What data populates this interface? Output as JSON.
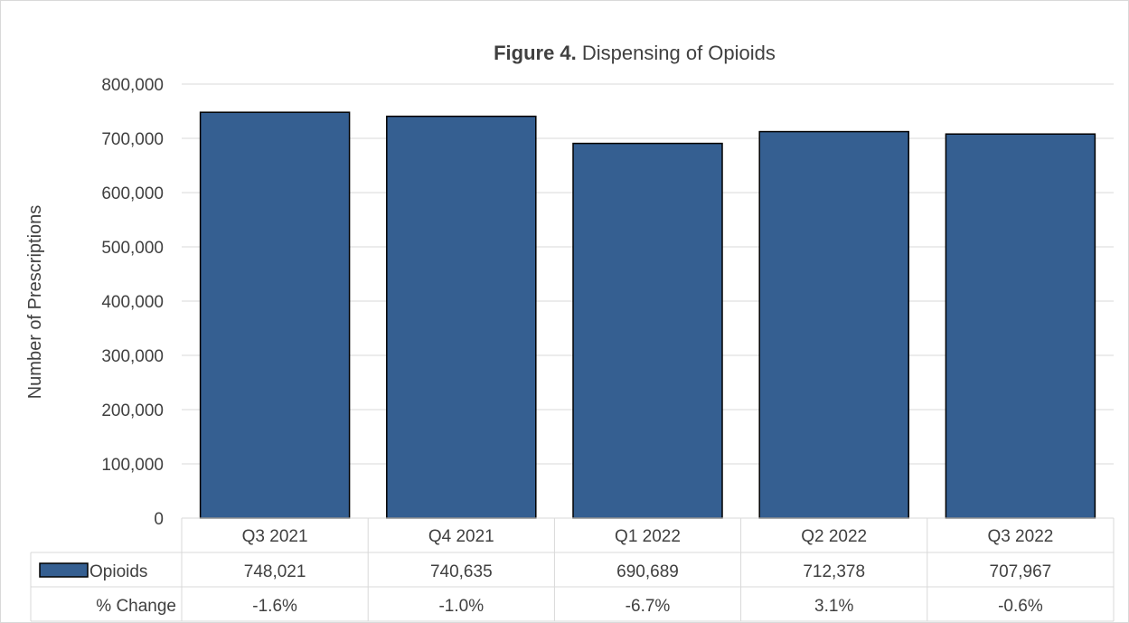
{
  "chart_data": {
    "type": "bar",
    "title_bold": "Figure 4.",
    "title_rest": " Dispensing of Opioids",
    "ylabel": "Number of Prescriptions",
    "xlabel": "",
    "categories": [
      "Q3 2021",
      "Q4 2021",
      "Q1 2022",
      "Q2 2022",
      "Q3 2022"
    ],
    "series": [
      {
        "name": "Opioids",
        "values": [
          748021,
          740635,
          690689,
          712378,
          707967
        ],
        "color": "#355F91"
      }
    ],
    "ylim": [
      0,
      800000
    ],
    "yticks": [
      0,
      100000,
      200000,
      300000,
      400000,
      500000,
      600000,
      700000,
      800000
    ],
    "ytick_labels": [
      "0",
      "100,000",
      "200,000",
      "300,000",
      "400,000",
      "500,000",
      "600,000",
      "700,000",
      "800,000"
    ],
    "grid": true,
    "data_table": {
      "rows": [
        {
          "label": "Opioids",
          "has_legend_key": true,
          "cells": [
            "748,021",
            "740,635",
            "690,689",
            "712,378",
            "707,967"
          ]
        },
        {
          "label": "% Change",
          "has_legend_key": false,
          "cells": [
            "-1.6%",
            "-1.0%",
            "-6.7%",
            "3.1%",
            "-0.6%"
          ]
        }
      ]
    }
  }
}
